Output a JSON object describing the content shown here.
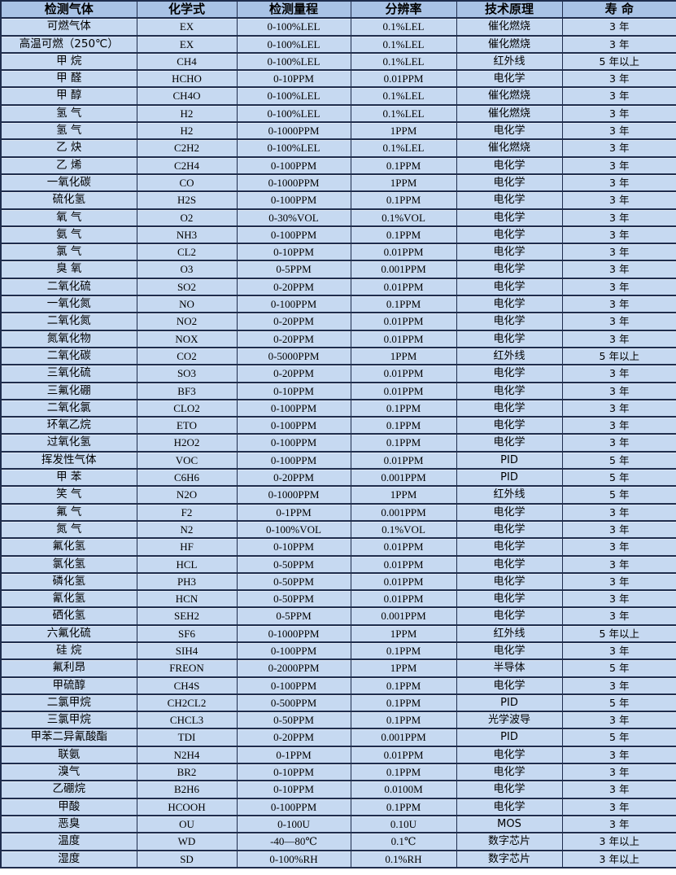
{
  "colors": {
    "header_bg": "#a9c3e6",
    "row_bg": "#c6d9f1",
    "border": "#1f2d4d",
    "text": "#000000"
  },
  "table": {
    "columns": [
      "检测气体",
      "化学式",
      "检测量程",
      "分辨率",
      "技术原理",
      "寿 命"
    ],
    "rows": [
      [
        "可燃气体",
        "EX",
        "0-100%LEL",
        "0.1%LEL",
        "催化燃烧",
        "3 年"
      ],
      [
        "高温可燃（250℃）",
        "EX",
        "0-100%LEL",
        "0.1%LEL",
        "催化燃烧",
        "3 年"
      ],
      [
        "甲 烷",
        "CH4",
        "0-100%LEL",
        "0.1%LEL",
        "红外线",
        "5 年以上"
      ],
      [
        "甲 醛",
        "HCHO",
        "0-10PPM",
        "0.01PPM",
        "电化学",
        "3 年"
      ],
      [
        "甲 醇",
        "CH4O",
        "0-100%LEL",
        "0.1%LEL",
        "催化燃烧",
        "3 年"
      ],
      [
        "氢 气",
        "H2",
        "0-100%LEL",
        "0.1%LEL",
        "催化燃烧",
        "3 年"
      ],
      [
        "氢 气",
        "H2",
        "0-1000PPM",
        "1PPM",
        "电化学",
        "3 年"
      ],
      [
        "乙 炔",
        "C2H2",
        "0-100%LEL",
        "0.1%LEL",
        "催化燃烧",
        "3 年"
      ],
      [
        "乙 烯",
        "C2H4",
        "0-100PPM",
        "0.1PPM",
        "电化学",
        "3 年"
      ],
      [
        "一氧化碳",
        "CO",
        "0-1000PPM",
        "1PPM",
        "电化学",
        "3 年"
      ],
      [
        "硫化氢",
        "H2S",
        "0-100PPM",
        "0.1PPM",
        "电化学",
        "3 年"
      ],
      [
        "氧 气",
        "O2",
        "0-30%VOL",
        "0.1%VOL",
        "电化学",
        "3 年"
      ],
      [
        "氨 气",
        "NH3",
        "0-100PPM",
        "0.1PPM",
        "电化学",
        "3 年"
      ],
      [
        "氯 气",
        "CL2",
        "0-10PPM",
        "0.01PPM",
        "电化学",
        "3 年"
      ],
      [
        "臭 氧",
        "O3",
        "0-5PPM",
        "0.001PPM",
        "电化学",
        "3 年"
      ],
      [
        "二氧化硫",
        "SO2",
        "0-20PPM",
        "0.01PPM",
        "电化学",
        "3 年"
      ],
      [
        "一氧化氮",
        "NO",
        "0-100PPM",
        "0.1PPM",
        "电化学",
        "3 年"
      ],
      [
        "二氧化氮",
        "NO2",
        "0-20PPM",
        "0.01PPM",
        "电化学",
        "3 年"
      ],
      [
        "氮氧化物",
        "NOX",
        "0-20PPM",
        "0.01PPM",
        "电化学",
        "3 年"
      ],
      [
        "二氧化碳",
        "CO2",
        "0-5000PPM",
        "1PPM",
        "红外线",
        "5 年以上"
      ],
      [
        "三氧化硫",
        "SO3",
        "0-20PPM",
        "0.01PPM",
        "电化学",
        "3 年"
      ],
      [
        "三氟化硼",
        "BF3",
        "0-10PPM",
        "0.01PPM",
        "电化学",
        "3 年"
      ],
      [
        "二氧化氯",
        "CLO2",
        "0-100PPM",
        "0.1PPM",
        "电化学",
        "3 年"
      ],
      [
        "环氧乙烷",
        "ETO",
        "0-100PPM",
        "0.1PPM",
        "电化学",
        "3 年"
      ],
      [
        "过氧化氢",
        "H2O2",
        "0-100PPM",
        "0.1PPM",
        "电化学",
        "3 年"
      ],
      [
        "挥发性气体",
        "VOC",
        "0-100PPM",
        "0.01PPM",
        "PID",
        "5 年"
      ],
      [
        "甲 苯",
        "C6H6",
        "0-20PPM",
        "0.001PPM",
        "PID",
        "5 年"
      ],
      [
        "笑 气",
        "N2O",
        "0-1000PPM",
        "1PPM",
        "红外线",
        "5 年"
      ],
      [
        "氟 气",
        "F2",
        "0-1PPM",
        "0.001PPM",
        "电化学",
        "3 年"
      ],
      [
        "氮 气",
        "N2",
        "0-100%VOL",
        "0.1%VOL",
        "电化学",
        "3 年"
      ],
      [
        "氟化氢",
        "HF",
        "0-10PPM",
        "0.01PPM",
        "电化学",
        "3 年"
      ],
      [
        "氯化氢",
        "HCL",
        "0-50PPM",
        "0.01PPM",
        "电化学",
        "3 年"
      ],
      [
        "磷化氢",
        "PH3",
        "0-50PPM",
        "0.01PPM",
        "电化学",
        "3 年"
      ],
      [
        "氰化氢",
        "HCN",
        "0-50PPM",
        "0.01PPM",
        "电化学",
        "3 年"
      ],
      [
        "硒化氢",
        "SEH2",
        "0-5PPM",
        "0.001PPM",
        "电化学",
        "3 年"
      ],
      [
        "六氟化硫",
        "SF6",
        "0-1000PPM",
        "1PPM",
        "红外线",
        "5 年以上"
      ],
      [
        "硅 烷",
        "SIH4",
        "0-100PPM",
        "0.1PPM",
        "电化学",
        "3 年"
      ],
      [
        "氟利昂",
        "FREON",
        "0-2000PPM",
        "1PPM",
        "半导体",
        "5 年"
      ],
      [
        "甲硫醇",
        "CH4S",
        "0-100PPM",
        "0.1PPM",
        "电化学",
        "3 年"
      ],
      [
        "二氯甲烷",
        "CH2CL2",
        "0-500PPM",
        "0.1PPM",
        "PID",
        "5 年"
      ],
      [
        "三氯甲烷",
        "CHCL3",
        "0-50PPM",
        "0.1PPM",
        "光学波导",
        "3 年"
      ],
      [
        "甲苯二异氰酸酯",
        "TDI",
        "0-20PPM",
        "0.001PPM",
        "PID",
        "5 年"
      ],
      [
        "联氨",
        "N2H4",
        "0-1PPM",
        "0.01PPM",
        "电化学",
        "3 年"
      ],
      [
        "溴气",
        "BR2",
        "0-10PPM",
        "0.1PPM",
        "电化学",
        "3 年"
      ],
      [
        "乙硼烷",
        "B2H6",
        "0-10PPM",
        "0.0100M",
        "电化学",
        "3 年"
      ],
      [
        "甲酸",
        "HCOOH",
        "0-100PPM",
        "0.1PPM",
        "电化学",
        "3 年"
      ],
      [
        "恶臭",
        "OU",
        "0-100U",
        "0.10U",
        "MOS",
        "3 年"
      ],
      [
        "温度",
        "WD",
        "-40—80℃",
        "0.1℃",
        "数字芯片",
        "3 年以上"
      ],
      [
        "湿度",
        "SD",
        "0-100%RH",
        "0.1%RH",
        "数字芯片",
        "3 年以上"
      ]
    ]
  }
}
